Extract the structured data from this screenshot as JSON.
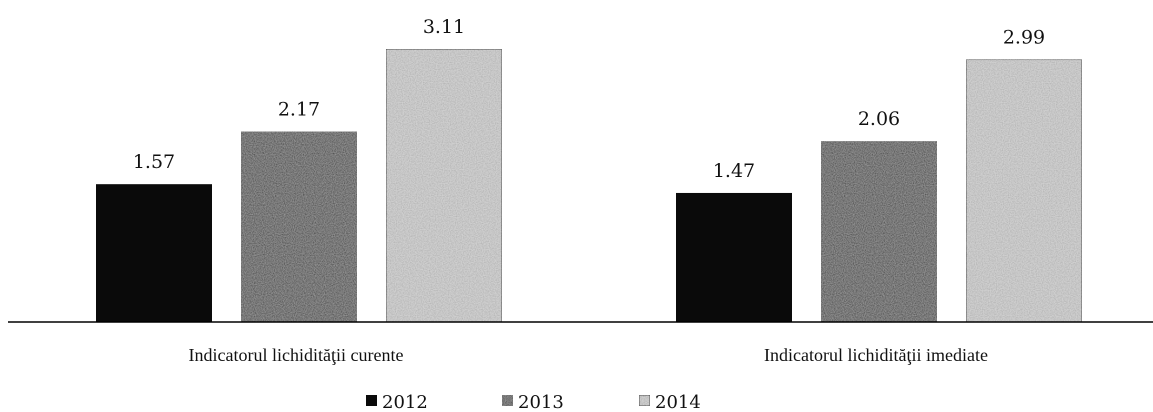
{
  "chart_data": {
    "type": "bar",
    "categories": [
      "Indicatorul lichidităţii curente",
      "Indicatorul lichidităţii imediate"
    ],
    "series": [
      {
        "name": "2012",
        "values": [
          1.57,
          1.47
        ],
        "color": "#0a0a0a"
      },
      {
        "name": "2013",
        "values": [
          2.17,
          2.06
        ],
        "color": "#2a2a2a"
      },
      {
        "name": "2014",
        "values": [
          3.11,
          2.99
        ],
        "color": "#cfcfcf"
      }
    ],
    "data_labels": [
      [
        "1.57",
        "1.47"
      ],
      [
        "2.17",
        "2.06"
      ],
      [
        "3.11",
        "2.99"
      ]
    ],
    "title": "",
    "xlabel": "",
    "ylabel": "",
    "ylim": [
      0,
      3.11
    ],
    "grid": false,
    "y_axis_visible": false,
    "legend_position": "bottom-center"
  }
}
